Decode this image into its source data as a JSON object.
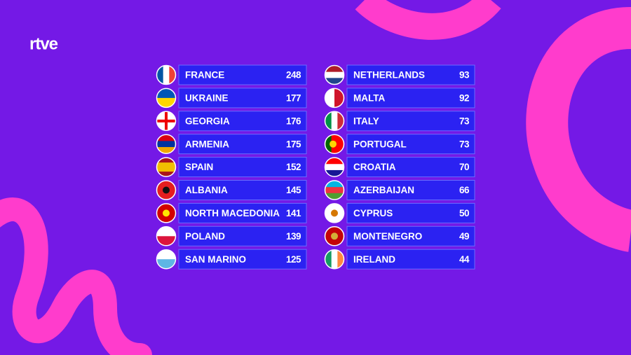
{
  "logo": "rtve",
  "columns": [
    {
      "rows": [
        {
          "country": "FRANCE",
          "points": 248
        },
        {
          "country": "UKRAINE",
          "points": 177
        },
        {
          "country": "GEORGIA",
          "points": 176
        },
        {
          "country": "ARMENIA",
          "points": 175
        },
        {
          "country": "SPAIN",
          "points": 152
        },
        {
          "country": "ALBANIA",
          "points": 145
        },
        {
          "country": "NORTH MACEDONIA",
          "points": 141
        },
        {
          "country": "POLAND",
          "points": 139
        },
        {
          "country": "SAN MARINO",
          "points": 125
        }
      ]
    },
    {
      "rows": [
        {
          "country": "NETHERLANDS",
          "points": 93
        },
        {
          "country": "MALTA",
          "points": 92
        },
        {
          "country": "ITALY",
          "points": 73
        },
        {
          "country": "PORTUGAL",
          "points": 73
        },
        {
          "country": "CROATIA",
          "points": 70
        },
        {
          "country": "AZERBAIJAN",
          "points": 66
        },
        {
          "country": "CYPRUS",
          "points": 50
        },
        {
          "country": "MONTENEGRO",
          "points": 49
        },
        {
          "country": "IRELAND",
          "points": 44
        }
      ]
    }
  ]
}
